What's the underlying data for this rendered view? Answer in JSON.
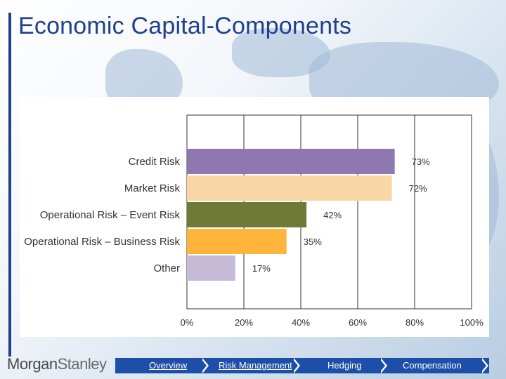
{
  "title": "Economic Capital-Components",
  "logo": {
    "part1": "Morgan",
    "part2": "Stanley"
  },
  "nav": [
    {
      "label": "Overview"
    },
    {
      "label": "Risk Management"
    },
    {
      "label": "Hedging"
    },
    {
      "label": "Compensation"
    }
  ],
  "chart_data": {
    "type": "bar",
    "orientation": "horizontal",
    "categories": [
      "Credit Risk",
      "Market Risk",
      "Operational Risk – Event Risk",
      "Operational Risk – Business Risk",
      "Other"
    ],
    "values": [
      73,
      72,
      42,
      35,
      17
    ],
    "data_labels": [
      "73%",
      "72%",
      "42%",
      "35%",
      "17%"
    ],
    "colors": [
      "#8f77b0",
      "#f8d6a5",
      "#707a37",
      "#ffb43c",
      "#c6bad6"
    ],
    "xlim": [
      0,
      100
    ],
    "xticks": [
      "0%",
      "20%",
      "40%",
      "60%",
      "80%",
      "100%"
    ],
    "grid": true
  }
}
